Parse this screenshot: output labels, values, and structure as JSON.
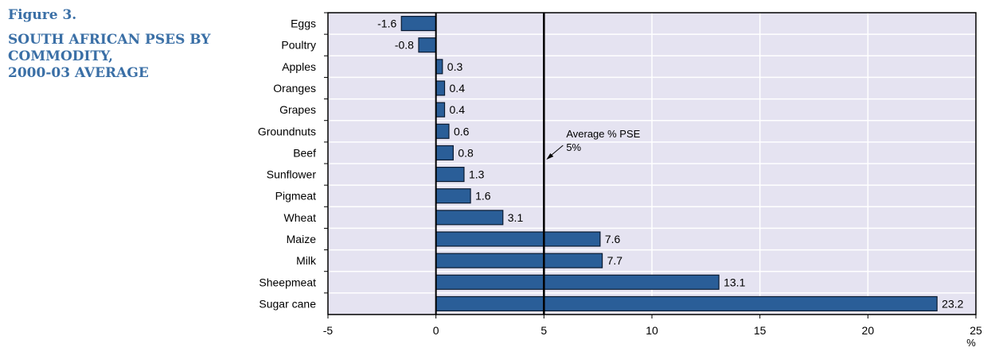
{
  "figure": {
    "number": "Figure 3.",
    "title_lines": [
      "SOUTH AFRICAN PSES BY",
      "COMMODITY,",
      "2000-03 AVERAGE"
    ]
  },
  "chart_data": {
    "type": "bar",
    "orientation": "horizontal",
    "categories": [
      "Eggs",
      "Poultry",
      "Apples",
      "Oranges",
      "Grapes",
      "Groundnuts",
      "Beef",
      "Sunflower",
      "Pigmeat",
      "Wheat",
      "Maize",
      "Milk",
      "Sheepmeat",
      "Sugar cane"
    ],
    "values": [
      -1.6,
      -0.8,
      0.3,
      0.4,
      0.4,
      0.6,
      0.8,
      1.3,
      1.6,
      3.1,
      7.6,
      7.7,
      13.1,
      23.2
    ],
    "value_labels": [
      "-1.6",
      "-0.8",
      "0.3",
      "0.4",
      "0.4",
      "0.6",
      "0.8",
      "1.3",
      "1.6",
      "3.1",
      "7.6",
      "7.7",
      "13.1",
      "23.2"
    ],
    "xlim": [
      -5,
      25
    ],
    "xticks": [
      -5,
      0,
      5,
      10,
      15,
      20,
      25
    ],
    "xtick_labels": [
      "-5",
      "0",
      "5",
      "10",
      "15",
      "20",
      "25"
    ],
    "xunit": "%",
    "reference_line": {
      "value": 5,
      "label_lines": [
        "Average % PSE",
        "5%"
      ]
    },
    "grid": true,
    "colors": {
      "bar": "#2a5e98",
      "plot_background": "#e5e3f1",
      "grid": "#ffffff",
      "title": "#3a6fa6"
    }
  }
}
